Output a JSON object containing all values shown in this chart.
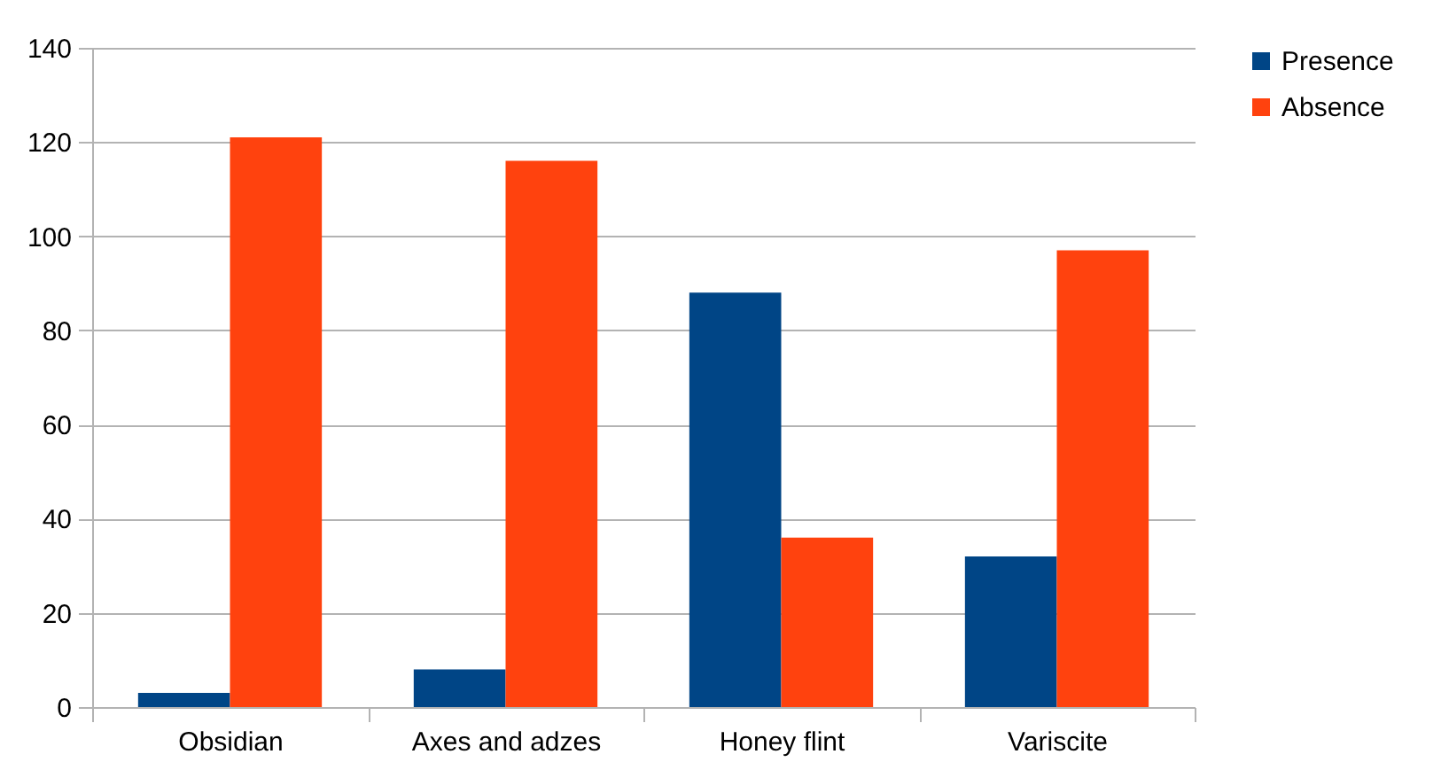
{
  "chart_data": {
    "type": "bar",
    "categories": [
      "Obsidian",
      "Axes and adzes",
      "Honey flint",
      "Variscite"
    ],
    "series": [
      {
        "name": "Presence",
        "color": "#004586",
        "values": [
          3,
          8,
          88,
          32
        ]
      },
      {
        "name": "Absence",
        "color": "#ff420e",
        "values": [
          121,
          116,
          36,
          97
        ]
      }
    ],
    "ylim": [
      0,
      140
    ],
    "yticks": [
      0,
      20,
      40,
      60,
      80,
      100,
      120,
      140
    ],
    "grid": "y",
    "legend": "right"
  }
}
